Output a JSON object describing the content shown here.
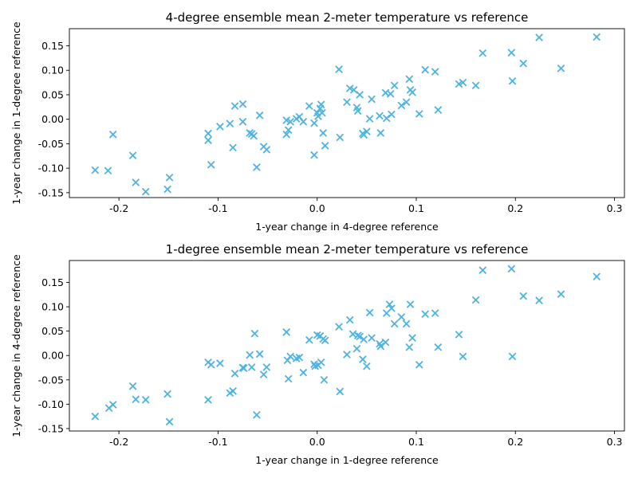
{
  "chart_data": [
    {
      "type": "scatter",
      "title": "4-degree ensemble mean 2-meter temperature vs reference",
      "xlabel": "1-year change in 4-degree reference",
      "ylabel": "1-year change in 1-degree reference",
      "xlim": [
        -0.25,
        0.31
      ],
      "ylim": [
        -0.16,
        0.185
      ],
      "xticks": [
        -0.2,
        -0.1,
        0.0,
        0.1,
        0.2,
        0.3
      ],
      "xtick_labels": [
        "-0.2",
        "-0.1",
        "0.0",
        "0.1",
        "0.2",
        "0.3"
      ],
      "yticks": [
        -0.15,
        -0.1,
        -0.05,
        0.0,
        0.05,
        0.1,
        0.15
      ],
      "ytick_labels": [
        "-0.15",
        "-0.10",
        "-0.05",
        "0.00",
        "0.05",
        "0.10",
        "0.15"
      ],
      "grid": false,
      "marker": "x",
      "color": "#4eb3e0",
      "points": [
        [
          -0.224,
          -0.104
        ],
        [
          -0.211,
          -0.105
        ],
        [
          -0.206,
          -0.031
        ],
        [
          -0.186,
          -0.074
        ],
        [
          -0.183,
          -0.129
        ],
        [
          -0.173,
          -0.148
        ],
        [
          -0.151,
          -0.143
        ],
        [
          -0.149,
          -0.119
        ],
        [
          -0.11,
          -0.029
        ],
        [
          -0.11,
          -0.043
        ],
        [
          -0.107,
          -0.093
        ],
        [
          -0.098,
          -0.015
        ],
        [
          -0.088,
          -0.009
        ],
        [
          -0.085,
          -0.058
        ],
        [
          -0.083,
          0.027
        ],
        [
          -0.075,
          0.031
        ],
        [
          -0.075,
          -0.005
        ],
        [
          -0.068,
          -0.028
        ],
        [
          -0.066,
          -0.03
        ],
        [
          -0.064,
          -0.034
        ],
        [
          -0.061,
          -0.098
        ],
        [
          -0.058,
          0.008
        ],
        [
          -0.054,
          -0.056
        ],
        [
          -0.051,
          -0.062
        ],
        [
          -0.031,
          -0.002
        ],
        [
          -0.031,
          -0.031
        ],
        [
          -0.029,
          -0.022
        ],
        [
          -0.027,
          -0.005
        ],
        [
          -0.021,
          0.001
        ],
        [
          -0.018,
          0.005
        ],
        [
          -0.014,
          -0.005
        ],
        [
          -0.008,
          0.027
        ],
        [
          -0.003,
          -0.073
        ],
        [
          -0.003,
          -0.008
        ],
        [
          0.0,
          0.013
        ],
        [
          0.001,
          0.006
        ],
        [
          0.003,
          0.022
        ],
        [
          0.004,
          0.03
        ],
        [
          0.005,
          0.013
        ],
        [
          0.006,
          -0.028
        ],
        [
          0.008,
          -0.054
        ],
        [
          0.022,
          0.102
        ],
        [
          0.023,
          -0.037
        ],
        [
          0.03,
          0.035
        ],
        [
          0.033,
          0.063
        ],
        [
          0.037,
          0.06
        ],
        [
          0.04,
          0.024
        ],
        [
          0.041,
          0.017
        ],
        [
          0.043,
          0.05
        ],
        [
          0.046,
          -0.029
        ],
        [
          0.047,
          -0.032
        ],
        [
          0.05,
          -0.025
        ],
        [
          0.053,
          0.001
        ],
        [
          0.055,
          0.041
        ],
        [
          0.063,
          0.007
        ],
        [
          0.064,
          -0.028
        ],
        [
          0.069,
          0.054
        ],
        [
          0.07,
          0.002
        ],
        [
          0.074,
          0.052
        ],
        [
          0.075,
          0.01
        ],
        [
          0.078,
          0.069
        ],
        [
          0.085,
          0.028
        ],
        [
          0.09,
          0.035
        ],
        [
          0.093,
          0.082
        ],
        [
          0.094,
          0.06
        ],
        [
          0.096,
          0.055
        ],
        [
          0.103,
          0.011
        ],
        [
          0.109,
          0.101
        ],
        [
          0.119,
          0.097
        ],
        [
          0.122,
          0.019
        ],
        [
          0.143,
          0.072
        ],
        [
          0.147,
          0.075
        ],
        [
          0.16,
          0.069
        ],
        [
          0.167,
          0.135
        ],
        [
          0.196,
          0.136
        ],
        [
          0.197,
          0.078
        ],
        [
          0.208,
          0.114
        ],
        [
          0.224,
          0.167
        ],
        [
          0.246,
          0.104
        ],
        [
          0.282,
          0.168
        ]
      ]
    },
    {
      "type": "scatter",
      "title": "1-degree ensemble mean 2-meter temperature vs reference",
      "xlabel": "1-year change in 1-degree reference",
      "ylabel": "1-year change in 4-degree reference",
      "xlim": [
        -0.25,
        0.31
      ],
      "ylim": [
        -0.155,
        0.195
      ],
      "xticks": [
        -0.2,
        -0.1,
        0.0,
        0.1,
        0.2,
        0.3
      ],
      "xtick_labels": [
        "-0.2",
        "-0.1",
        "0.0",
        "0.1",
        "0.2",
        "0.3"
      ],
      "yticks": [
        -0.15,
        -0.1,
        -0.05,
        0.0,
        0.05,
        0.1,
        0.15
      ],
      "ytick_labels": [
        "-0.15",
        "-0.10",
        "-0.05",
        "0.00",
        "0.05",
        "0.10",
        "0.15"
      ],
      "grid": false,
      "marker": "x",
      "color": "#4eb3e0",
      "points": [
        [
          -0.224,
          -0.125
        ],
        [
          -0.21,
          -0.108
        ],
        [
          -0.206,
          -0.101
        ],
        [
          -0.186,
          -0.063
        ],
        [
          -0.183,
          -0.09
        ],
        [
          -0.173,
          -0.091
        ],
        [
          -0.151,
          -0.079
        ],
        [
          -0.149,
          -0.136
        ],
        [
          -0.11,
          -0.091
        ],
        [
          -0.11,
          -0.014
        ],
        [
          -0.107,
          -0.019
        ],
        [
          -0.098,
          -0.016
        ],
        [
          -0.088,
          -0.077
        ],
        [
          -0.085,
          -0.073
        ],
        [
          -0.083,
          -0.037
        ],
        [
          -0.075,
          -0.025
        ],
        [
          -0.074,
          -0.026
        ],
        [
          -0.068,
          0.001
        ],
        [
          -0.066,
          -0.024
        ],
        [
          -0.063,
          0.045
        ],
        [
          -0.061,
          -0.122
        ],
        [
          -0.058,
          0.003
        ],
        [
          -0.054,
          -0.039
        ],
        [
          -0.051,
          -0.024
        ],
        [
          -0.031,
          0.048
        ],
        [
          -0.03,
          -0.01
        ],
        [
          -0.029,
          -0.048
        ],
        [
          -0.027,
          -0.002
        ],
        [
          -0.021,
          -0.006
        ],
        [
          -0.018,
          -0.004
        ],
        [
          -0.014,
          -0.035
        ],
        [
          -0.008,
          0.032
        ],
        [
          -0.003,
          -0.018
        ],
        [
          -0.002,
          -0.022
        ],
        [
          0.0,
          0.042
        ],
        [
          0.001,
          -0.02
        ],
        [
          0.003,
          0.04
        ],
        [
          0.004,
          -0.014
        ],
        [
          0.006,
          0.034
        ],
        [
          0.007,
          -0.05
        ],
        [
          0.008,
          0.031
        ],
        [
          0.022,
          0.059
        ],
        [
          0.023,
          -0.074
        ],
        [
          0.03,
          0.002
        ],
        [
          0.033,
          0.073
        ],
        [
          0.036,
          0.044
        ],
        [
          0.04,
          0.014
        ],
        [
          0.041,
          0.041
        ],
        [
          0.043,
          0.039
        ],
        [
          0.046,
          -0.008
        ],
        [
          0.047,
          0.033
        ],
        [
          0.05,
          -0.022
        ],
        [
          0.053,
          0.088
        ],
        [
          0.055,
          0.036
        ],
        [
          0.063,
          0.024
        ],
        [
          0.064,
          0.019
        ],
        [
          0.069,
          0.027
        ],
        [
          0.07,
          0.087
        ],
        [
          0.073,
          0.105
        ],
        [
          0.075,
          0.097
        ],
        [
          0.078,
          0.065
        ],
        [
          0.085,
          0.079
        ],
        [
          0.09,
          0.065
        ],
        [
          0.093,
          0.017
        ],
        [
          0.094,
          0.105
        ],
        [
          0.096,
          0.036
        ],
        [
          0.103,
          -0.019
        ],
        [
          0.109,
          0.085
        ],
        [
          0.119,
          0.087
        ],
        [
          0.122,
          0.017
        ],
        [
          0.143,
          0.043
        ],
        [
          0.147,
          -0.002
        ],
        [
          0.16,
          0.114
        ],
        [
          0.167,
          0.175
        ],
        [
          0.196,
          0.178
        ],
        [
          0.197,
          -0.002
        ],
        [
          0.208,
          0.122
        ],
        [
          0.224,
          0.113
        ],
        [
          0.246,
          0.126
        ],
        [
          0.282,
          0.162
        ]
      ]
    }
  ]
}
